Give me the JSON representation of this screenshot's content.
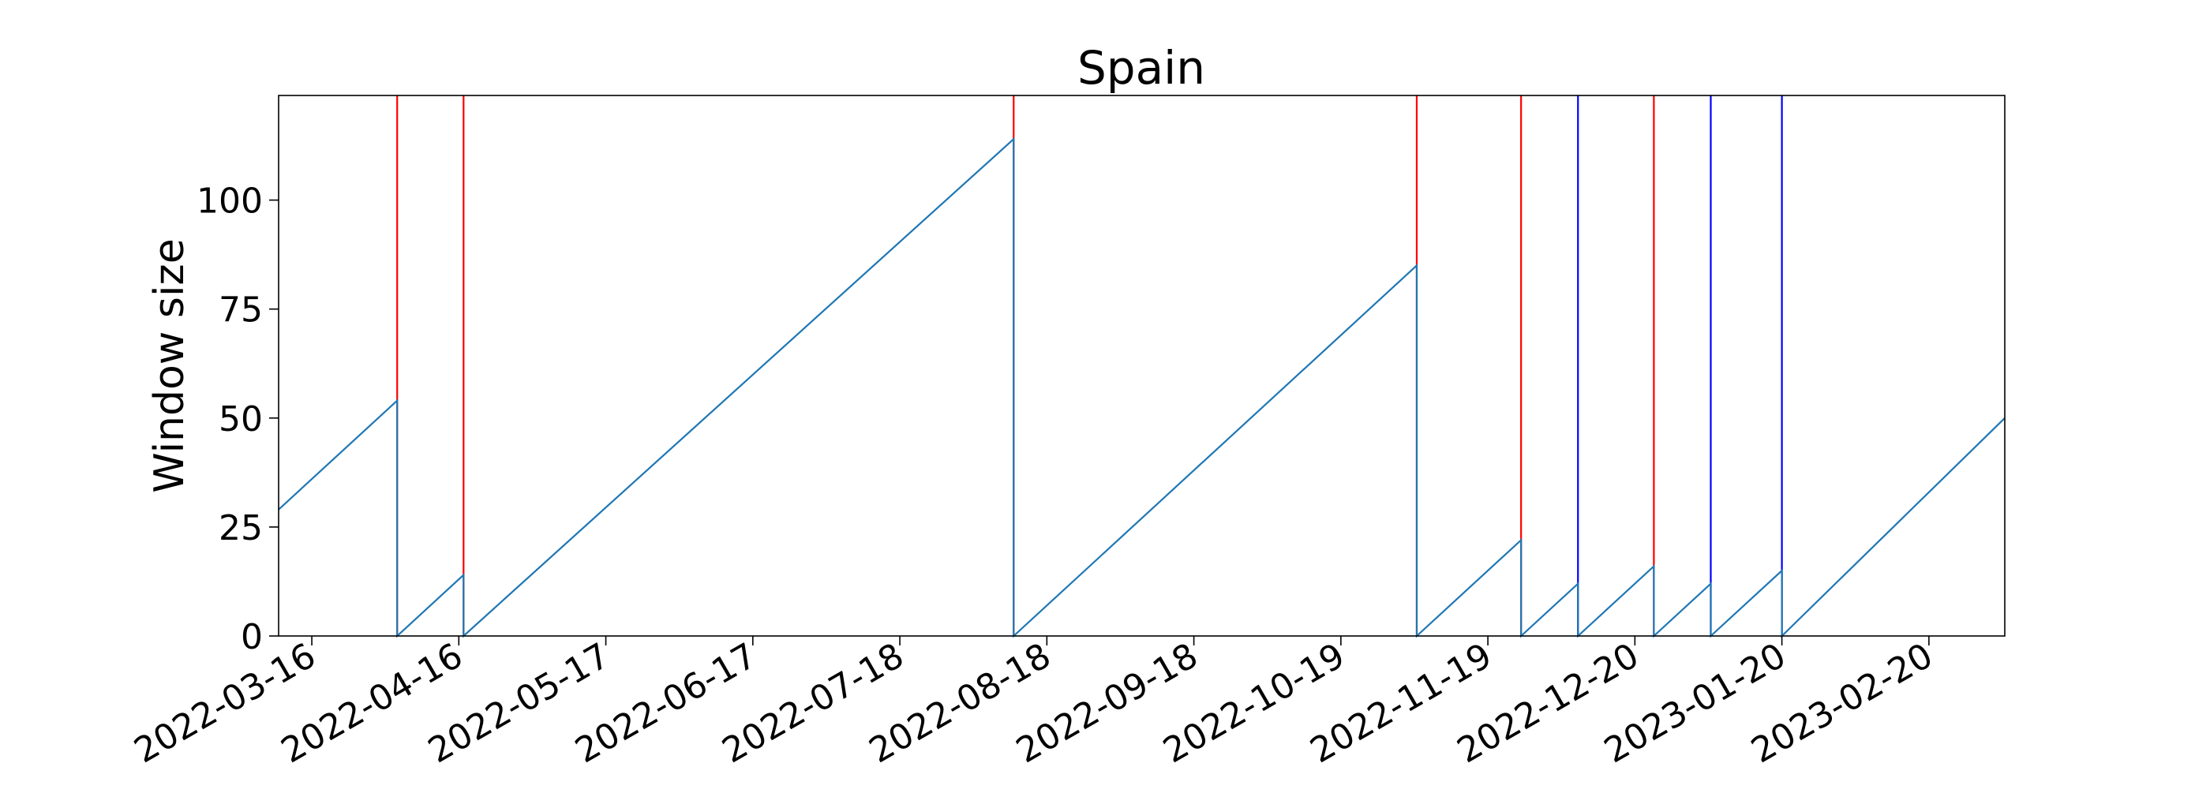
{
  "chart_data": {
    "type": "line",
    "title": "Spain",
    "xlabel": "",
    "ylabel": "Window size",
    "x_tick_labels": [
      "2022-03-16",
      "2022-04-16",
      "2022-05-17",
      "2022-06-17",
      "2022-07-18",
      "2022-08-18",
      "2022-09-18",
      "2022-10-19",
      "2022-11-19",
      "2022-12-20",
      "2023-01-20",
      "2023-02-20"
    ],
    "y_ticks": [
      0,
      25,
      50,
      75,
      100
    ],
    "xlim": [
      "2022-03-09",
      "2023-03-08"
    ],
    "ylim": [
      0,
      124
    ],
    "grid": false,
    "series": [
      {
        "color": "#1f77b4",
        "points": [
          [
            "2022-03-09",
            29
          ],
          [
            "2022-04-03",
            54
          ],
          [
            "2022-04-03",
            0
          ],
          [
            "2022-04-17",
            14
          ],
          [
            "2022-04-17",
            0
          ],
          [
            "2022-08-11",
            114
          ],
          [
            "2022-08-11",
            0
          ],
          [
            "2022-11-04",
            85
          ],
          [
            "2022-11-04",
            0
          ],
          [
            "2022-11-26",
            22
          ],
          [
            "2022-11-26",
            0
          ],
          [
            "2022-12-08",
            12
          ],
          [
            "2022-12-08",
            0
          ],
          [
            "2022-12-24",
            16
          ],
          [
            "2022-12-24",
            0
          ],
          [
            "2023-01-05",
            12
          ],
          [
            "2023-01-05",
            0
          ],
          [
            "2023-01-20",
            15
          ],
          [
            "2023-01-20",
            0
          ],
          [
            "2023-03-08",
            50
          ]
        ]
      }
    ],
    "vertical_lines": [
      {
        "x": "2022-04-03",
        "color": "#ff0000"
      },
      {
        "x": "2022-04-17",
        "color": "#ff0000"
      },
      {
        "x": "2022-08-11",
        "color": "#ff0000"
      },
      {
        "x": "2022-11-04",
        "color": "#ff0000"
      },
      {
        "x": "2022-11-26",
        "color": "#ff0000"
      },
      {
        "x": "2022-12-08",
        "color": "#0000ff"
      },
      {
        "x": "2022-12-24",
        "color": "#ff0000"
      },
      {
        "x": "2023-01-05",
        "color": "#0000ff"
      },
      {
        "x": "2023-01-20",
        "color": "#0000ff"
      }
    ]
  }
}
